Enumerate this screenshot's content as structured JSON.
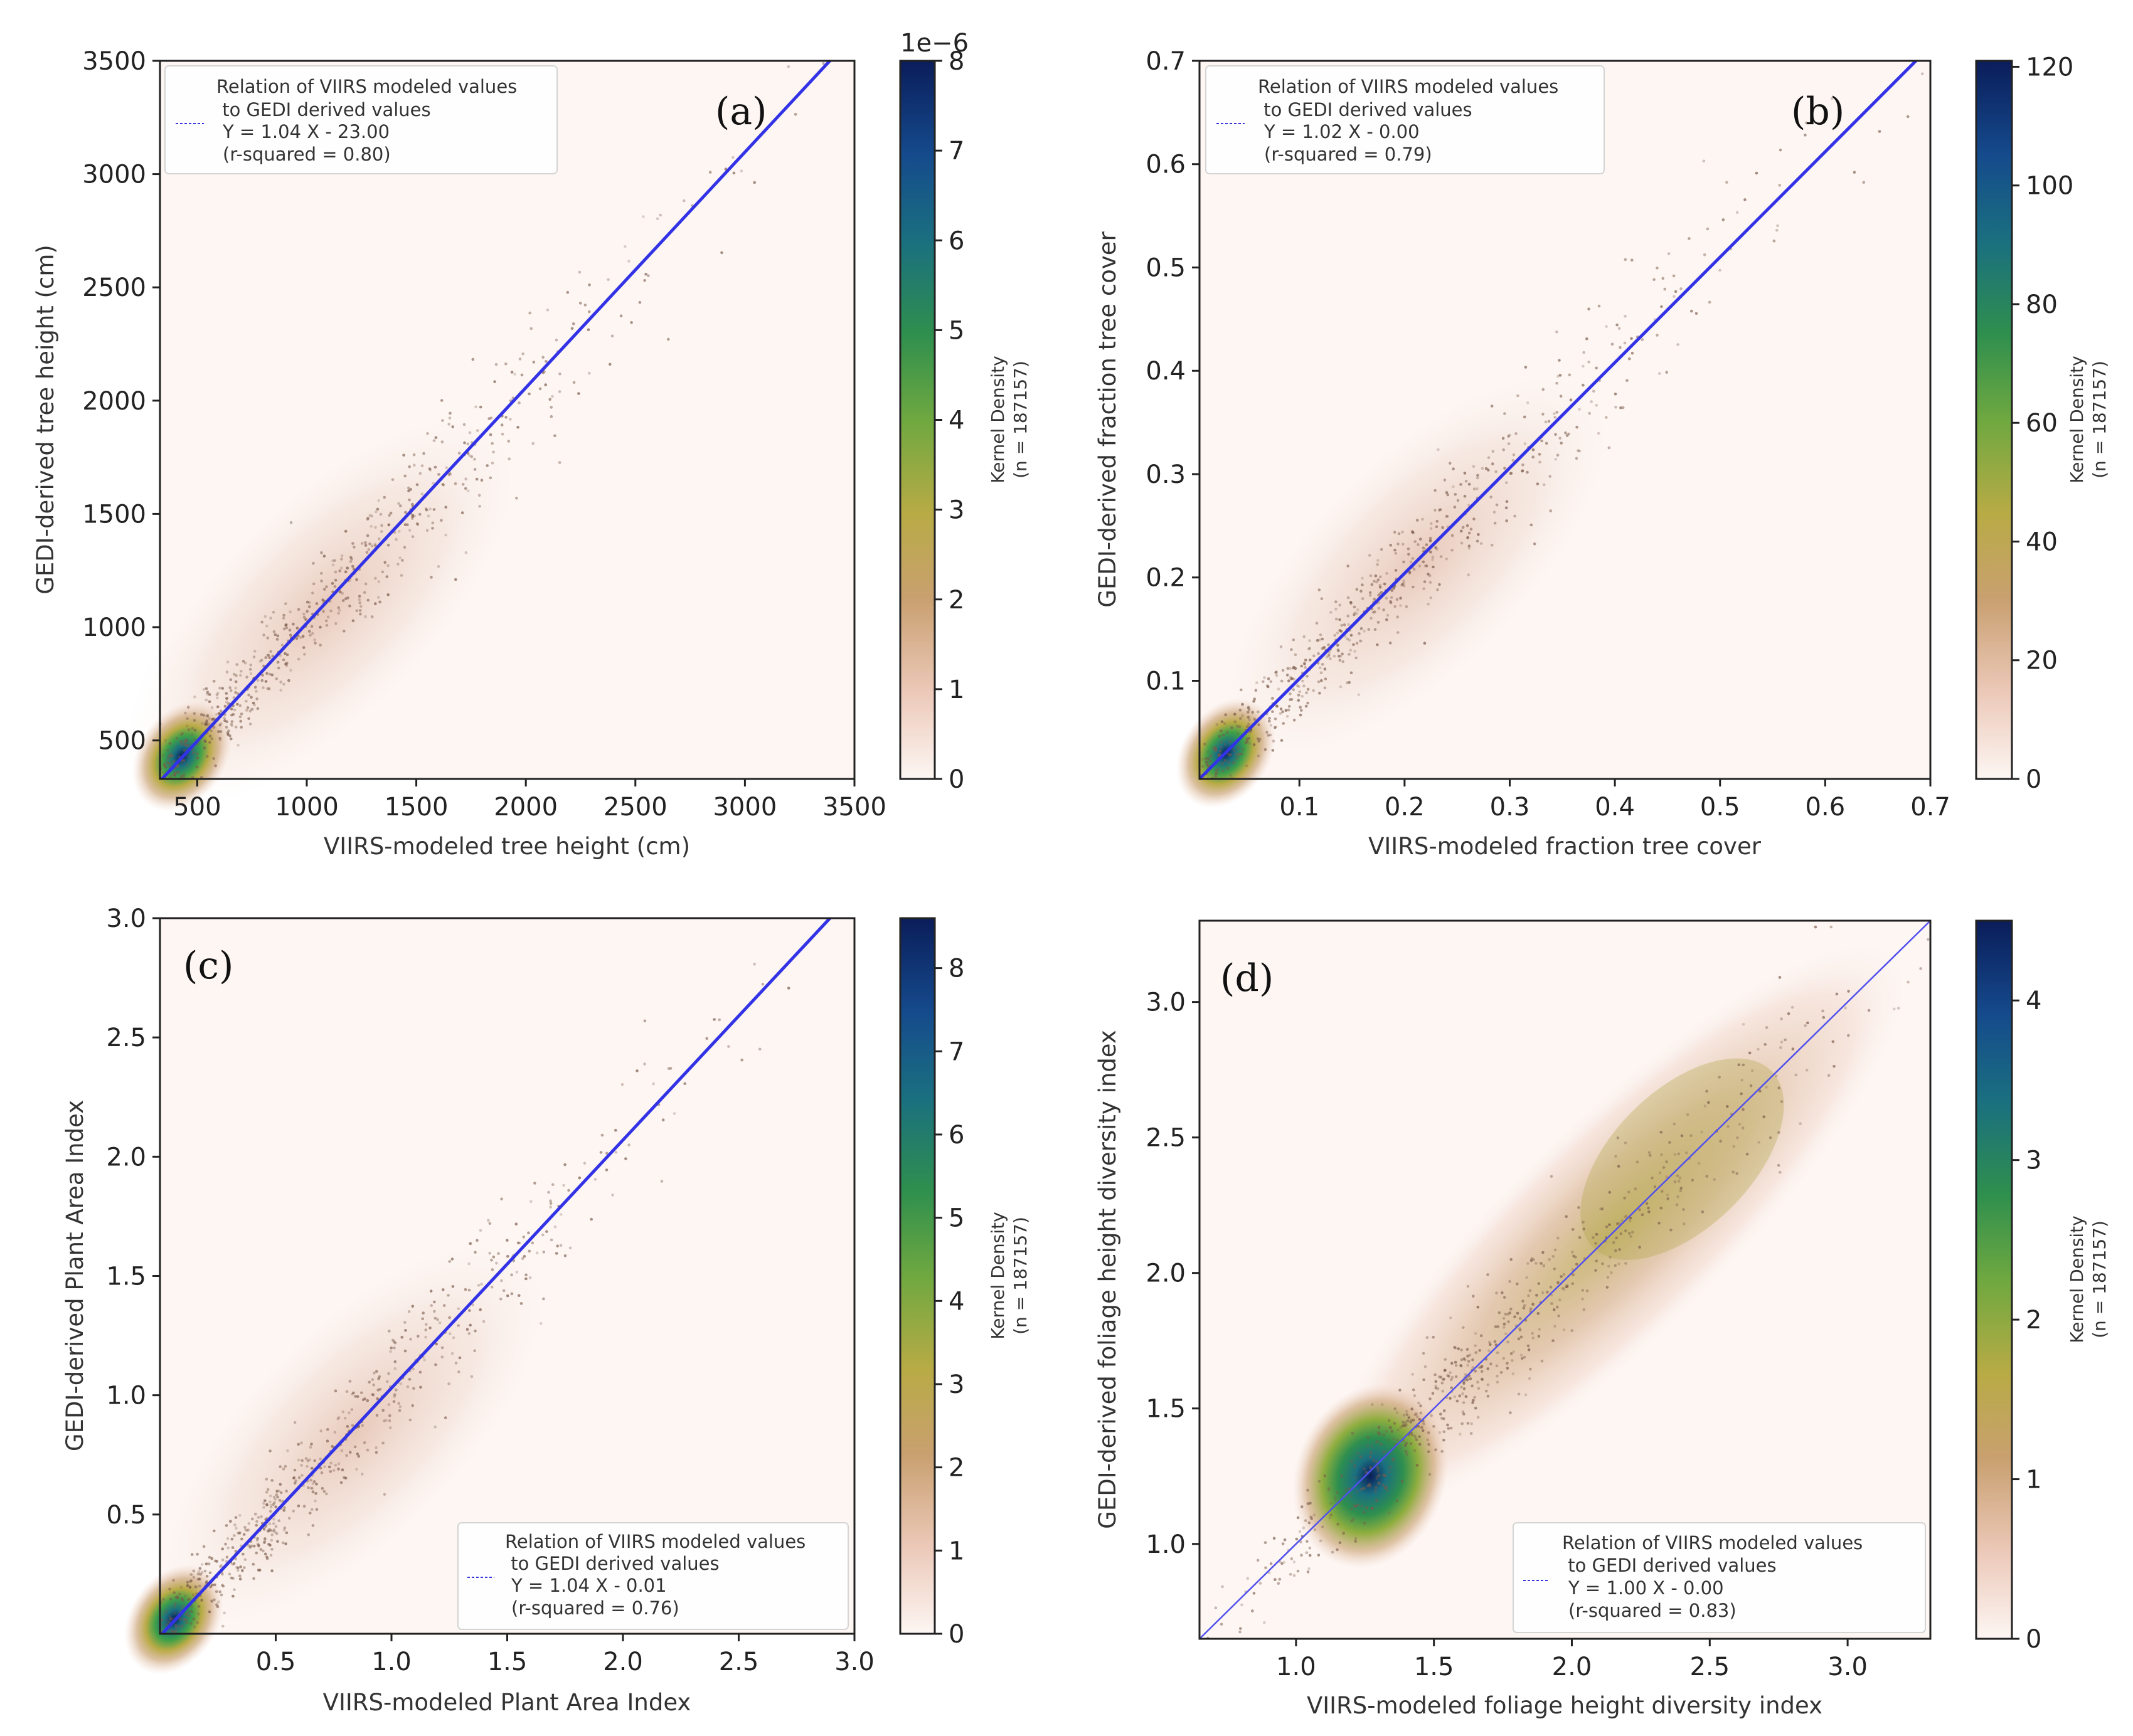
{
  "chart_data": [
    {
      "type": "scatter",
      "panel_label": "(a)",
      "xlabel": "VIIRS-modeled tree height (cm)",
      "ylabel": "GEDI-derived tree height (cm)",
      "xlim": [
        330,
        3500
      ],
      "ylim": [
        330,
        3500
      ],
      "xticks": [
        500,
        1000,
        1500,
        2000,
        2500,
        3000,
        3500
      ],
      "xtick_labels": [
        "500",
        "1000",
        "1500",
        "2000",
        "2500",
        "3000",
        "3500"
      ],
      "yticks": [
        500,
        1000,
        1500,
        2000,
        2500,
        3000,
        3500
      ],
      "ytick_labels": [
        "500",
        "1000",
        "1500",
        "2000",
        "2500",
        "3000",
        "3500"
      ],
      "regression": {
        "slope": 1.04,
        "intercept": -23.0
      },
      "density_center": [
        430,
        430
      ],
      "spread": 250,
      "legend": {
        "lines": [
          "Relation of VIIRS modeled values",
          " to GEDI derived values",
          "Y = 1.04 X - 23.00",
          "(r-squared = 0.80)"
        ],
        "loc": "upper-left"
      },
      "colorbar": {
        "label_lines": [
          "Kernel Density",
          "(n = 187157)"
        ],
        "ticks": [
          0,
          1,
          2,
          3,
          4,
          5,
          6,
          7,
          8
        ],
        "tick_labels": [
          "0",
          "1",
          "2",
          "3",
          "4",
          "5",
          "6",
          "7",
          "8"
        ],
        "range": [
          0,
          8
        ],
        "exponent": "1e−6"
      }
    },
    {
      "type": "scatter",
      "panel_label": "(b)",
      "xlabel": "VIIRS-modeled fraction tree cover",
      "ylabel": "GEDI-derived fraction tree cover",
      "xlim": [
        0.005,
        0.7
      ],
      "ylim": [
        0.005,
        0.7
      ],
      "xticks": [
        0.1,
        0.2,
        0.3,
        0.4,
        0.5,
        0.6,
        0.7
      ],
      "xtick_labels": [
        "0.1",
        "0.2",
        "0.3",
        "0.4",
        "0.5",
        "0.6",
        "0.7"
      ],
      "yticks": [
        0.1,
        0.2,
        0.3,
        0.4,
        0.5,
        0.6,
        0.7
      ],
      "ytick_labels": [
        "0.1",
        "0.2",
        "0.3",
        "0.4",
        "0.5",
        "0.6",
        "0.7"
      ],
      "regression": {
        "slope": 1.02,
        "intercept": 0.0
      },
      "density_center": [
        0.03,
        0.03
      ],
      "spread": 0.07,
      "legend": {
        "lines": [
          "Relation of VIIRS modeled values",
          " to GEDI derived values",
          "Y = 1.02 X - 0.00",
          "(r-squared = 0.79)"
        ],
        "loc": "upper-left"
      },
      "colorbar": {
        "label_lines": [
          "Kernel Density",
          "(n = 187157)"
        ],
        "ticks": [
          0,
          20,
          40,
          60,
          80,
          100,
          120
        ],
        "tick_labels": [
          "0",
          "20",
          "40",
          "60",
          "80",
          "100",
          "120"
        ],
        "range": [
          0,
          121
        ],
        "exponent": ""
      }
    },
    {
      "type": "scatter",
      "panel_label": "(c)",
      "xlabel": "VIIRS-modeled Plant Area Index",
      "ylabel": "GEDI-derived Plant Area Index",
      "xlim": [
        0.0,
        3.0
      ],
      "ylim": [
        0.0,
        3.0
      ],
      "xticks": [
        0.5,
        1.0,
        1.5,
        2.0,
        2.5,
        3.0
      ],
      "xtick_labels": [
        "0.5",
        "1.0",
        "1.5",
        "2.0",
        "2.5",
        "3.0"
      ],
      "yticks": [
        0.5,
        1.0,
        1.5,
        2.0,
        2.5,
        3.0
      ],
      "ytick_labels": [
        "0.5",
        "1.0",
        "1.5",
        "2.0",
        "2.5",
        "3.0"
      ],
      "regression": {
        "slope": 1.04,
        "intercept": -0.01
      },
      "density_center": [
        0.06,
        0.06
      ],
      "spread": 0.3,
      "legend": {
        "lines": [
          "Relation of VIIRS modeled values",
          " to GEDI derived values",
          "Y = 1.04 X - 0.01",
          "(r-squared = 0.76)"
        ],
        "loc": "lower-right"
      },
      "colorbar": {
        "label_lines": [
          "Kernel Density",
          "(n = 187157)"
        ],
        "ticks": [
          0,
          1,
          2,
          3,
          4,
          5,
          6,
          7,
          8
        ],
        "tick_labels": [
          "0",
          "1",
          "2",
          "3",
          "4",
          "5",
          "6",
          "7",
          "8"
        ],
        "range": [
          0,
          8.6
        ],
        "exponent": ""
      }
    },
    {
      "type": "scatter",
      "panel_label": "(d)",
      "xlabel": "VIIRS-modeled foliage height diversity index",
      "ylabel": "GEDI-derived foliage height diversity index",
      "xlim": [
        0.65,
        3.3
      ],
      "ylim": [
        0.65,
        3.3
      ],
      "xticks": [
        1.0,
        1.5,
        2.0,
        2.5,
        3.0
      ],
      "xtick_labels": [
        "1.0",
        "1.5",
        "2.0",
        "2.5",
        "3.0"
      ],
      "yticks": [
        1.0,
        1.5,
        2.0,
        2.5,
        3.0
      ],
      "ytick_labels": [
        "1.0",
        "1.5",
        "2.0",
        "2.5",
        "3.0"
      ],
      "regression": {
        "slope": 1.0,
        "intercept": 0.0
      },
      "density_center": [
        1.27,
        1.25
      ],
      "spread": 0.35,
      "legend": {
        "lines": [
          "Relation of VIIRS modeled values",
          " to GEDI derived values",
          "Y = 1.00 X - 0.00",
          "(r-squared = 0.83)"
        ],
        "loc": "lower-right"
      },
      "colorbar": {
        "label_lines": [
          "Kernel Density",
          "(n = 187157)"
        ],
        "ticks": [
          0,
          1,
          2,
          3,
          4
        ],
        "tick_labels": [
          "0",
          "1",
          "2",
          "3",
          "4"
        ],
        "range": [
          0,
          4.5
        ],
        "exponent": ""
      }
    }
  ],
  "colors": {
    "regression_line": "#3232e6",
    "axis": "#222222",
    "colormap": [
      "#fdf6f3",
      "#ecc9b9",
      "#c9a070",
      "#b8ab45",
      "#6fa840",
      "#2e8f4e",
      "#1a6f80",
      "#154a8c",
      "#0b1d5a"
    ]
  }
}
